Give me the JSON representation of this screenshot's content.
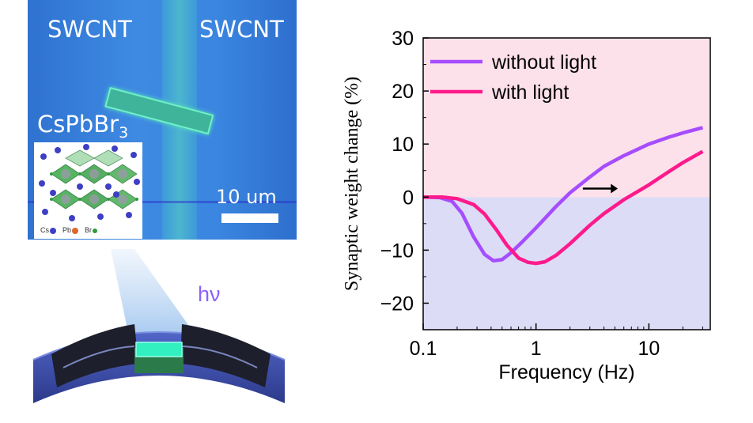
{
  "micrograph": {
    "label_left": "SWCNT",
    "label_right": "SWCNT",
    "label_material_base": "CsPbBr",
    "label_material_sub": "3",
    "scale_bar": "10 um"
  },
  "inset_legend": {
    "cs": "Cs",
    "pb": "Pb",
    "br": "Br",
    "colors": {
      "cs": "#3d3fc4",
      "pb": "#e0662a",
      "br": "#2f9a3a"
    }
  },
  "device": {
    "light_label": "hν"
  },
  "chart_data": {
    "type": "line",
    "xlabel": "Frequency (Hz)",
    "ylabel": "Synaptic weight change  (%)",
    "xscale": "log",
    "xlim": [
      0.1,
      35
    ],
    "ylim": [
      -25,
      30
    ],
    "xticks": [
      0.1,
      1,
      10
    ],
    "xtick_labels": [
      "0.1",
      "1",
      "10"
    ],
    "yticks": [
      30,
      20,
      10,
      0,
      -10,
      -20
    ],
    "ytick_labels": [
      "30",
      "20",
      "10",
      "0",
      "−10",
      "−20"
    ],
    "background": {
      "positive": "#fde1ea",
      "negative": "#dcdcf6"
    },
    "legend_position": "top-left",
    "series": [
      {
        "name": "without light",
        "color": "#a64dff",
        "x": [
          0.1,
          0.14,
          0.18,
          0.22,
          0.28,
          0.35,
          0.42,
          0.5,
          0.6,
          0.75,
          1,
          1.5,
          2,
          3,
          4,
          6,
          10,
          15,
          20,
          30
        ],
        "y": [
          0,
          -0.1,
          -0.8,
          -3,
          -7.5,
          -10.8,
          -12,
          -11.8,
          -10.5,
          -8.5,
          -5.8,
          -1.8,
          0.8,
          3.8,
          5.8,
          7.8,
          10,
          11.3,
          12.1,
          13.1
        ]
      },
      {
        "name": "with light",
        "color": "#ff1a8c",
        "x": [
          0.1,
          0.15,
          0.2,
          0.28,
          0.35,
          0.45,
          0.55,
          0.7,
          0.85,
          1,
          1.2,
          1.5,
          2,
          3,
          4,
          6,
          10,
          15,
          20,
          30
        ],
        "y": [
          0,
          0,
          -0.3,
          -1.4,
          -3.2,
          -6.3,
          -9,
          -11.5,
          -12.3,
          -12.5,
          -12.2,
          -11,
          -8.8,
          -5.3,
          -3.1,
          -0.5,
          2.3,
          4.8,
          6.5,
          8.6
        ]
      }
    ],
    "annotation": "arrow pointing right"
  }
}
